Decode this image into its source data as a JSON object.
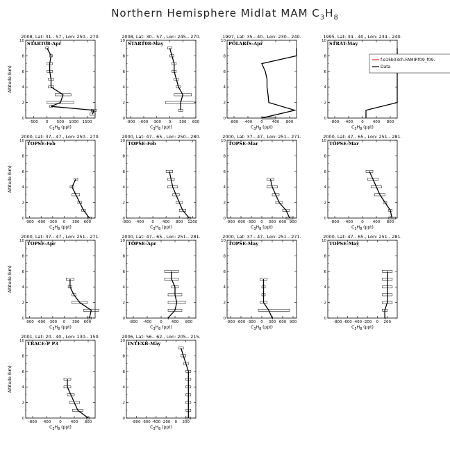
{
  "figure": {
    "title_main": "Northern Hemisphere Midlat MAM C",
    "title_sub1": "3",
    "title_mid": "H",
    "title_sub2": "8"
  },
  "x_axis_label": {
    "base": "C",
    "s1": "3",
    "mid": "H",
    "s2": "8",
    "unit": " (ppt)"
  },
  "y_axis_label": "Altitude (km)",
  "legend": {
    "model": "f.e15b03ch.FAMIP.f09_f09.",
    "data": "Data"
  },
  "colors": {
    "model": "#e8262a",
    "data": "#000000"
  },
  "chart_data": [
    {
      "type": "line",
      "header": "2008, Lat: 31.- 57., Lon: 250.- 270.",
      "label": "START08-Apr",
      "xlim": [
        -800,
        1800
      ],
      "xticks": [
        -500,
        0,
        500,
        1000,
        1500
      ],
      "ylim": [
        0,
        10
      ],
      "yticks": [
        0,
        2,
        4,
        6,
        8,
        10
      ],
      "points": [
        [
          1700,
          0.5
        ],
        [
          1750,
          1
        ],
        [
          150,
          1.5
        ],
        [
          500,
          2
        ],
        [
          600,
          3
        ],
        [
          150,
          4
        ],
        [
          150,
          5
        ],
        [
          100,
          6
        ],
        [
          100,
          7
        ],
        [
          150,
          8
        ],
        [
          0,
          9
        ]
      ],
      "whiskers": [
        [
          1700,
          1600,
          1800
        ],
        [
          1750,
          1650,
          1850
        ],
        [
          150,
          100,
          200
        ],
        [
          500,
          0,
          1000
        ],
        [
          600,
          300,
          900
        ],
        [
          150,
          50,
          250
        ],
        [
          150,
          50,
          250
        ],
        [
          100,
          0,
          200
        ],
        [
          100,
          0,
          200
        ],
        [
          150,
          100,
          200
        ],
        [
          0,
          -50,
          50
        ]
      ]
    },
    {
      "type": "line",
      "header": "2008, Lat: 30.- 57., Lon: 245.- 270.",
      "label": "START08-May",
      "xlim": [
        -1000,
        600
      ],
      "xticks": [
        -900,
        -600,
        -300,
        0,
        300,
        600
      ],
      "ylim": [
        0,
        10
      ],
      "yticks": [
        0,
        2,
        4,
        6,
        8,
        10
      ],
      "points": [
        [
          250,
          1
        ],
        [
          250,
          2
        ],
        [
          300,
          3
        ],
        [
          200,
          4
        ],
        [
          150,
          5
        ],
        [
          100,
          6
        ],
        [
          100,
          7
        ],
        [
          50,
          8
        ],
        [
          0,
          9
        ]
      ],
      "whiskers": [
        [
          250,
          200,
          300
        ],
        [
          250,
          -100,
          600
        ],
        [
          300,
          100,
          500
        ],
        [
          200,
          150,
          250
        ],
        [
          150,
          100,
          200
        ],
        [
          100,
          50,
          150
        ],
        [
          100,
          50,
          150
        ],
        [
          50,
          0,
          100
        ],
        [
          0,
          -50,
          50
        ]
      ]
    },
    {
      "type": "line",
      "header": "1997, Lat: 35.- 40., Lon: 230.- 240.",
      "label": "POLARIS-Apr",
      "xlim": [
        -1000,
        1000
      ],
      "xticks": [
        -800,
        -400,
        0,
        400,
        800
      ],
      "ylim": [
        0,
        10
      ],
      "yticks": [
        0,
        2,
        4,
        6,
        8,
        10
      ],
      "points": [
        [
          0,
          0
        ],
        [
          950,
          1
        ],
        [
          200,
          2
        ],
        [
          180,
          3
        ],
        [
          150,
          4
        ],
        [
          150,
          5
        ],
        [
          100,
          6
        ],
        [
          0,
          7
        ],
        [
          1000,
          8
        ],
        [
          1000,
          9
        ]
      ],
      "whiskers": [
        [
          200,
          0,
          400
        ]
      ]
    },
    {
      "type": "line",
      "header": "1995, Lat: 34.- 40., Lon: 234.- 240.",
      "label": "STRAT-May",
      "xlim": [
        -1000,
        1000
      ],
      "xticks": [
        -800,
        -400,
        0,
        400,
        800
      ],
      "ylim": [
        0,
        10
      ],
      "yticks": [
        0,
        2,
        4,
        6,
        8,
        10
      ],
      "points": [
        [
          100,
          0
        ],
        [
          100,
          1
        ],
        [
          1000,
          2
        ],
        [
          1000,
          6
        ],
        [
          1000,
          9
        ]
      ],
      "whiskers": [],
      "legend": true
    },
    {
      "type": "line",
      "header": "2000, Lat: 37.- 47., Lon: 250.- 270.",
      "label": "TOPSE-Feb",
      "xlim": [
        -1000,
        800
      ],
      "xticks": [
        -900,
        -600,
        -300,
        0,
        300,
        600
      ],
      "ylim": [
        0,
        10
      ],
      "yticks": [
        0,
        2,
        4,
        6,
        8,
        10
      ],
      "points": [
        [
          650,
          0
        ],
        [
          500,
          1
        ],
        [
          400,
          2
        ],
        [
          300,
          3
        ],
        [
          200,
          4
        ],
        [
          300,
          5
        ]
      ],
      "whiskers": [
        [
          650,
          600,
          700
        ],
        [
          500,
          450,
          550
        ],
        [
          400,
          350,
          450
        ],
        [
          300,
          200,
          400
        ],
        [
          200,
          150,
          250
        ],
        [
          300,
          250,
          350
        ]
      ]
    },
    {
      "type": "line",
      "header": "2000, Lat: 47.- 65., Lon: 250.- 280.",
      "label": "TOPSE-Feb",
      "xlim": [
        -800,
        1300
      ],
      "xticks": [
        -800,
        -400,
        0,
        400,
        800,
        1200
      ],
      "ylim": [
        0,
        10
      ],
      "yticks": [
        0,
        2,
        4,
        6,
        8,
        10
      ],
      "points": [
        [
          1100,
          0
        ],
        [
          900,
          1
        ],
        [
          800,
          2
        ],
        [
          700,
          3
        ],
        [
          600,
          4
        ],
        [
          550,
          5
        ],
        [
          500,
          6
        ]
      ],
      "whiskers": [
        [
          1100,
          1050,
          1150
        ],
        [
          900,
          800,
          1000
        ],
        [
          800,
          700,
          900
        ],
        [
          700,
          600,
          800
        ],
        [
          600,
          450,
          750
        ],
        [
          550,
          450,
          650
        ],
        [
          500,
          400,
          600
        ]
      ]
    },
    {
      "type": "line",
      "header": "2000, Lat: 37.- 47., Lon: 251.- 271.",
      "label": "TOPSE-Mar",
      "xlim": [
        -1000,
        1000
      ],
      "xticks": [
        -900,
        -600,
        -300,
        0,
        300,
        600,
        900
      ],
      "ylim": [
        0,
        10
      ],
      "yticks": [
        0,
        2,
        4,
        6,
        8,
        10
      ],
      "points": [
        [
          800,
          0
        ],
        [
          700,
          1
        ],
        [
          500,
          2
        ],
        [
          400,
          3
        ],
        [
          300,
          4
        ],
        [
          250,
          5
        ]
      ],
      "whiskers": [
        [
          800,
          700,
          900
        ],
        [
          700,
          600,
          800
        ],
        [
          500,
          400,
          600
        ],
        [
          400,
          300,
          500
        ],
        [
          300,
          150,
          450
        ],
        [
          250,
          150,
          350
        ]
      ]
    },
    {
      "type": "line",
      "header": "2000, Lat: 47.- 65., Lon: 251.- 281.",
      "label": "TOPSE-Mar",
      "xlim": [
        -1000,
        1000
      ],
      "xticks": [
        -800,
        -400,
        0,
        400,
        800
      ],
      "ylim": [
        0,
        10
      ],
      "yticks": [
        0,
        2,
        4,
        6,
        8,
        10
      ],
      "points": [
        [
          850,
          0
        ],
        [
          800,
          1
        ],
        [
          650,
          2
        ],
        [
          500,
          3
        ],
        [
          400,
          4
        ],
        [
          300,
          5
        ],
        [
          200,
          6
        ]
      ],
      "whiskers": [
        [
          850,
          750,
          950
        ],
        [
          800,
          750,
          850
        ],
        [
          650,
          600,
          700
        ],
        [
          500,
          350,
          650
        ],
        [
          400,
          250,
          550
        ],
        [
          300,
          150,
          450
        ],
        [
          200,
          100,
          300
        ]
      ]
    },
    {
      "type": "line",
      "header": "2000, Lat: 37.- 47., Lon: 251.- 271.",
      "label": "TOPSE-Apr",
      "xlim": [
        -1000,
        800
      ],
      "xticks": [
        -900,
        -600,
        -300,
        0,
        300,
        600
      ],
      "ylim": [
        0,
        10
      ],
      "yticks": [
        0,
        2,
        4,
        6,
        8,
        10
      ],
      "points": [
        [
          650,
          0
        ],
        [
          700,
          1
        ],
        [
          400,
          2
        ],
        [
          250,
          3
        ],
        [
          150,
          4
        ],
        [
          150,
          5
        ]
      ],
      "whiskers": [
        [
          650,
          600,
          700
        ],
        [
          700,
          500,
          900
        ],
        [
          400,
          200,
          600
        ],
        [
          250,
          200,
          300
        ],
        [
          150,
          100,
          200
        ],
        [
          150,
          50,
          250
        ]
      ]
    },
    {
      "type": "line",
      "header": "2000, Lat: 47.- 65., Lon: 251.- 281.",
      "label": "TOPSE-Apr",
      "xlim": [
        -1000,
        1000
      ],
      "xticks": [
        -800,
        -400,
        0,
        400,
        800
      ],
      "ylim": [
        0,
        10
      ],
      "yticks": [
        0,
        2,
        4,
        6,
        8,
        10
      ],
      "points": [
        [
          200,
          0
        ],
        [
          400,
          1
        ],
        [
          450,
          2
        ],
        [
          400,
          3
        ],
        [
          400,
          4
        ],
        [
          300,
          5
        ],
        [
          300,
          6
        ]
      ],
      "whiskers": [
        [
          200,
          200,
          200
        ],
        [
          400,
          200,
          600
        ],
        [
          450,
          200,
          700
        ],
        [
          400,
          200,
          600
        ],
        [
          400,
          300,
          500
        ],
        [
          300,
          100,
          500
        ],
        [
          300,
          100,
          500
        ]
      ]
    },
    {
      "type": "line",
      "header": "2000, Lat: 37.- 47., Lon: 251.- 271.",
      "label": "TOPSE-May",
      "xlim": [
        -1000,
        1000
      ],
      "xticks": [
        -900,
        -600,
        -300,
        0,
        300,
        600,
        900
      ],
      "ylim": [
        0,
        10
      ],
      "yticks": [
        0,
        2,
        4,
        6,
        8,
        10
      ],
      "points": [
        [
          300,
          0
        ],
        [
          200,
          1
        ],
        [
          50,
          2
        ],
        [
          50,
          3
        ],
        [
          50,
          4
        ],
        [
          50,
          5
        ]
      ],
      "whiskers": [
        [
          300,
          300,
          300
        ],
        [
          200,
          -100,
          800
        ],
        [
          50,
          -50,
          150
        ],
        [
          50,
          0,
          100
        ],
        [
          50,
          0,
          100
        ],
        [
          50,
          -50,
          150
        ]
      ]
    },
    {
      "type": "line",
      "header": "2000, Lat: 47.- 65., Lon: 251.- 281.",
      "label": "TOPSE-May",
      "xlim": [
        -1000,
        400
      ],
      "xticks": [
        -800,
        -600,
        -400,
        -200,
        0,
        200
      ],
      "ylim": [
        0,
        10
      ],
      "yticks": [
        0,
        2,
        4,
        6,
        8,
        10
      ],
      "points": [
        [
          150,
          0
        ],
        [
          150,
          1
        ],
        [
          200,
          2
        ],
        [
          200,
          3
        ],
        [
          200,
          4
        ],
        [
          200,
          5
        ],
        [
          200,
          6
        ]
      ],
      "whiskers": [
        [
          150,
          150,
          150
        ],
        [
          150,
          100,
          200
        ],
        [
          200,
          100,
          300
        ],
        [
          200,
          100,
          300
        ],
        [
          200,
          100,
          300
        ],
        [
          200,
          100,
          300
        ],
        [
          200,
          100,
          300
        ]
      ]
    },
    {
      "type": "line",
      "header": "2001, Lat: 20.- 40., Lon: 130.- 150.",
      "label": "TRACE-P P3",
      "xlim": [
        -1000,
        1000
      ],
      "xticks": [
        -800,
        -400,
        0,
        400,
        800
      ],
      "ylim": [
        0,
        10
      ],
      "yticks": [
        0,
        2,
        4,
        6,
        8,
        10
      ],
      "points": [
        [
          800,
          0
        ],
        [
          500,
          1
        ],
        [
          400,
          2
        ],
        [
          300,
          3
        ],
        [
          200,
          4
        ],
        [
          200,
          5
        ]
      ],
      "whiskers": [
        [
          800,
          750,
          850
        ],
        [
          500,
          350,
          650
        ],
        [
          400,
          250,
          550
        ],
        [
          300,
          200,
          400
        ],
        [
          200,
          100,
          300
        ],
        [
          200,
          100,
          300
        ]
      ]
    },
    {
      "type": "line",
      "header": "2006, Lat: 56.- 62., Lon: 205.- 215.",
      "label": "INTEXB-May",
      "xlim": [
        -1000,
        400
      ],
      "xticks": [
        -800,
        -600,
        -400,
        -200,
        0,
        200
      ],
      "ylim": [
        0,
        10
      ],
      "yticks": [
        0,
        2,
        4,
        6,
        8,
        10
      ],
      "points": [
        [
          250,
          0
        ],
        [
          250,
          1
        ],
        [
          250,
          2
        ],
        [
          250,
          3
        ],
        [
          250,
          4
        ],
        [
          250,
          5
        ],
        [
          250,
          6
        ],
        [
          200,
          7
        ],
        [
          150,
          8
        ],
        [
          100,
          9
        ]
      ],
      "whiskers": [
        [
          250,
          200,
          300
        ],
        [
          250,
          200,
          300
        ],
        [
          250,
          200,
          300
        ],
        [
          250,
          200,
          300
        ],
        [
          250,
          200,
          300
        ],
        [
          250,
          200,
          300
        ],
        [
          250,
          200,
          300
        ],
        [
          200,
          150,
          250
        ],
        [
          150,
          100,
          200
        ],
        [
          100,
          50,
          150
        ]
      ]
    }
  ]
}
